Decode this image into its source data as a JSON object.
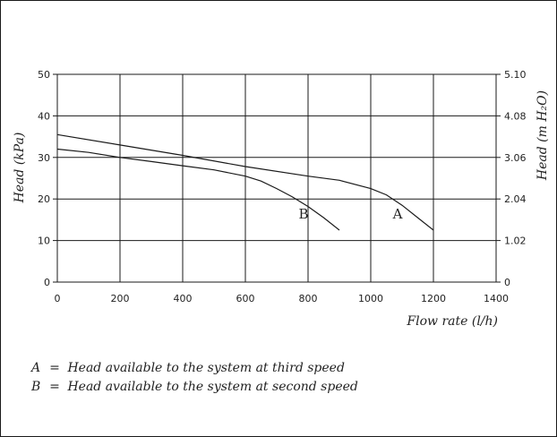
{
  "chart_data": {
    "type": "line",
    "title": "",
    "xlabel": "Flow rate (l/h)",
    "ylabel": "Head (kPa)",
    "y2label": "Head (m H₂O)",
    "xlim": [
      0,
      1400
    ],
    "ylim": [
      0,
      50
    ],
    "x_ticks": [
      0,
      200,
      400,
      600,
      800,
      1000,
      1200,
      1400
    ],
    "y_ticks": [
      0,
      10,
      20,
      30,
      40,
      50
    ],
    "y2_ticks": [
      "0",
      "1.02",
      "2.04",
      "3.06",
      "4.08",
      "5.10"
    ],
    "grid": true,
    "series": [
      {
        "name": "A",
        "x": [
          0,
          200,
          400,
          600,
          800,
          900,
          1000,
          1050,
          1100,
          1150,
          1200
        ],
        "y": [
          35.5,
          33,
          30.5,
          27.8,
          25.5,
          24.5,
          22.5,
          21,
          18.5,
          15.5,
          12.5
        ]
      },
      {
        "name": "B",
        "x": [
          0,
          100,
          200,
          300,
          400,
          500,
          600,
          650,
          700,
          750,
          800,
          850,
          900
        ],
        "y": [
          32,
          31.2,
          30,
          29,
          28,
          27,
          25.5,
          24.3,
          22.5,
          20.5,
          18.2,
          15.5,
          12.5
        ]
      }
    ]
  },
  "legend": [
    {
      "key": "A",
      "eq": "=",
      "text": "Head available to the system at third speed"
    },
    {
      "key": "B",
      "eq": "=",
      "text": "Head available to the system at second speed"
    }
  ]
}
